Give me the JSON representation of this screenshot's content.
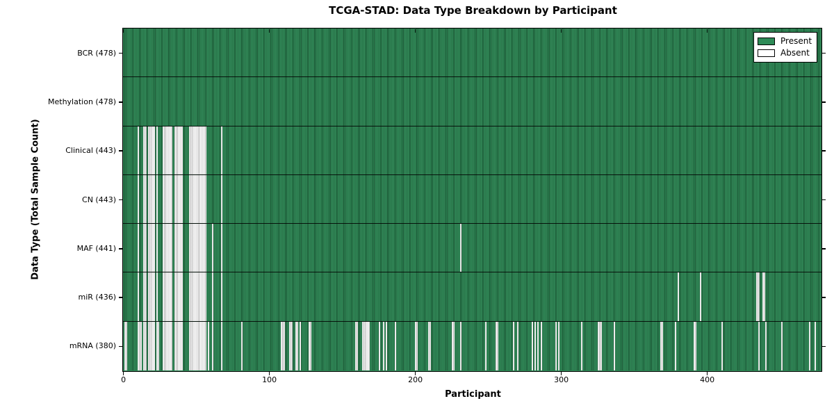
{
  "title": "TCGA-STAD: Data Type Breakdown by Participant",
  "xlabel": "Participant",
  "ylabel": "Data Type (Total Sample Count)",
  "legend": {
    "present_label": "Present",
    "absent_label": "Absent"
  },
  "colors": {
    "present": "#2e8b57",
    "absent": "#ffffff",
    "edge": "#000000"
  },
  "chart_data": {
    "type": "heatmap",
    "title": "TCGA-STAD: Data Type Breakdown by Participant",
    "xlabel": "Participant",
    "ylabel": "Data Type (Total Sample Count)",
    "legend_entries": [
      "Present",
      "Absent"
    ],
    "legend_position": "upper right",
    "grid": false,
    "n_participants": 478,
    "x_range": [
      0,
      478
    ],
    "x_ticks": [
      "0",
      "100",
      "200",
      "300",
      "400"
    ],
    "x_tick_values": [
      0,
      100,
      200,
      300,
      400
    ],
    "cell_values": {
      "present": 1,
      "absent": 0
    },
    "rows": [
      {
        "name": "BCR",
        "label": "BCR (478)",
        "total": 478,
        "absent": []
      },
      {
        "name": "Methylation",
        "label": "Methylation (478)",
        "total": 478,
        "absent": []
      },
      {
        "name": "Clinical",
        "label": "Clinical (443)",
        "total": 443,
        "absent": [
          10,
          14,
          15,
          17,
          18,
          19,
          20,
          21,
          23,
          27,
          28,
          29,
          30,
          31,
          32,
          33,
          35,
          36,
          37,
          38,
          39,
          40,
          45,
          46,
          47,
          48,
          49,
          50,
          51,
          52,
          53,
          54,
          55,
          56,
          67
        ]
      },
      {
        "name": "CN",
        "label": "CN (443)",
        "total": 443,
        "absent": [
          10,
          14,
          15,
          17,
          18,
          19,
          20,
          21,
          23,
          27,
          28,
          29,
          30,
          31,
          32,
          33,
          35,
          36,
          37,
          38,
          39,
          40,
          45,
          46,
          47,
          48,
          49,
          50,
          51,
          52,
          53,
          54,
          55,
          56,
          67
        ]
      },
      {
        "name": "MAF",
        "label": "MAF (441)",
        "total": 441,
        "absent": [
          10,
          14,
          15,
          17,
          18,
          19,
          20,
          21,
          23,
          27,
          28,
          29,
          30,
          31,
          32,
          33,
          35,
          36,
          37,
          38,
          39,
          40,
          45,
          46,
          47,
          48,
          49,
          50,
          51,
          52,
          53,
          54,
          55,
          56,
          61,
          67,
          231
        ]
      },
      {
        "name": "miR",
        "label": "miR (436)",
        "total": 436,
        "absent": [
          10,
          14,
          15,
          17,
          18,
          19,
          20,
          21,
          23,
          27,
          28,
          29,
          30,
          31,
          32,
          33,
          35,
          36,
          37,
          38,
          39,
          40,
          45,
          46,
          47,
          48,
          49,
          50,
          51,
          52,
          53,
          54,
          55,
          56,
          61,
          67,
          380,
          395,
          434,
          435,
          438,
          439
        ]
      },
      {
        "name": "mRNA",
        "label": "mRNA (380)",
        "total": 380,
        "absent": [
          1,
          2,
          10,
          11,
          12,
          14,
          15,
          17,
          18,
          19,
          20,
          21,
          23,
          24,
          27,
          28,
          29,
          30,
          31,
          32,
          33,
          35,
          36,
          37,
          38,
          39,
          40,
          45,
          46,
          47,
          48,
          49,
          50,
          51,
          52,
          53,
          54,
          55,
          56,
          58,
          61,
          67,
          81,
          108,
          109,
          110,
          114,
          115,
          118,
          119,
          121,
          127,
          128,
          159,
          160,
          164,
          165,
          166,
          167,
          168,
          175,
          178,
          180,
          186,
          200,
          201,
          209,
          210,
          225,
          226,
          231,
          248,
          255,
          256,
          267,
          270,
          280,
          282,
          284,
          286,
          296,
          298,
          314,
          325,
          326,
          327,
          336,
          368,
          369,
          378,
          391,
          392,
          410,
          435,
          440,
          451,
          470,
          474
        ]
      }
    ]
  }
}
